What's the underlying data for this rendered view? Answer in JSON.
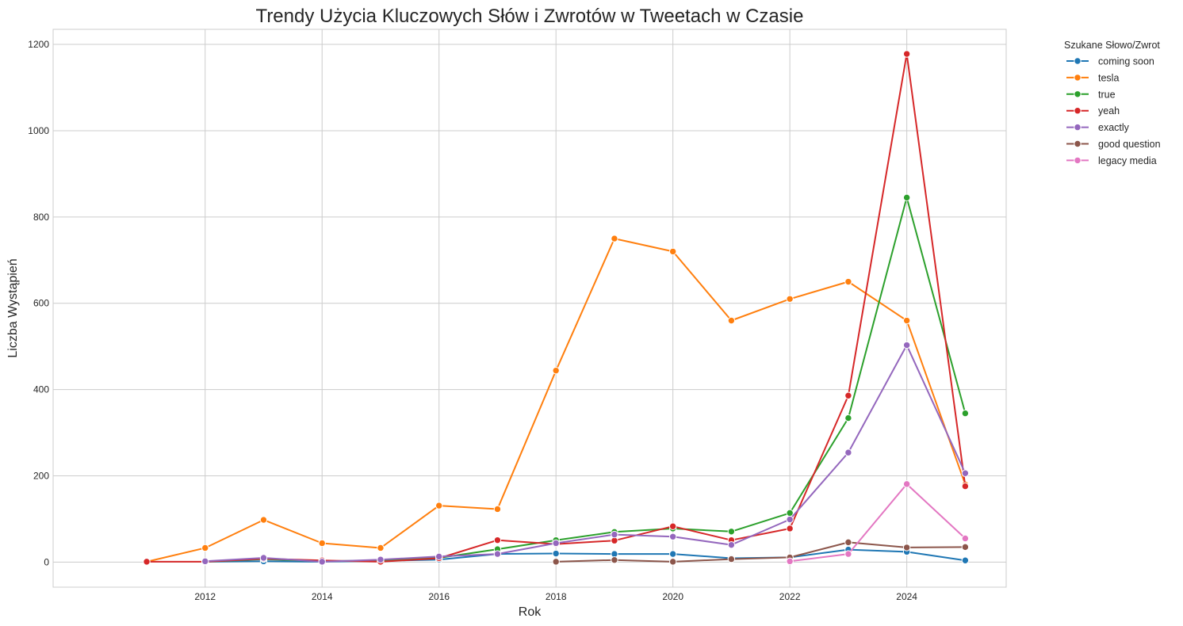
{
  "chart_data": {
    "type": "line",
    "title": "Trendy Użycia Kluczowych Słów i Zwrotów w Tweetach w Czasie",
    "xlabel": "Rok",
    "ylabel": "Liczba Wystąpień",
    "xlim": [
      2009.4,
      2025.7
    ],
    "ylim": [
      -58,
      1235
    ],
    "xticks": [
      2012,
      2014,
      2016,
      2018,
      2020,
      2022,
      2024
    ],
    "yticks": [
      0,
      200,
      400,
      600,
      800,
      1000,
      1200
    ],
    "grid": true,
    "legend": {
      "title": "Szukane Słowo/Zwrot",
      "position": "outside-right"
    },
    "series": [
      {
        "name": "coming soon",
        "color": "#1f77b4",
        "points": [
          [
            2012,
            1
          ],
          [
            2013,
            2
          ],
          [
            2014,
            1
          ],
          [
            2015,
            3
          ],
          [
            2016,
            6
          ],
          [
            2017,
            19
          ],
          [
            2018,
            20
          ],
          [
            2019,
            19
          ],
          [
            2020,
            19
          ],
          [
            2021,
            9
          ],
          [
            2022,
            11
          ],
          [
            2023,
            29
          ],
          [
            2024,
            24
          ],
          [
            2025,
            4
          ]
        ]
      },
      {
        "name": "tesla",
        "color": "#ff7f0e",
        "points": [
          [
            2011,
            1
          ],
          [
            2012,
            33
          ],
          [
            2013,
            98
          ],
          [
            2014,
            44
          ],
          [
            2015,
            33
          ],
          [
            2016,
            131
          ],
          [
            2017,
            123
          ],
          [
            2018,
            444
          ],
          [
            2019,
            750
          ],
          [
            2020,
            720
          ],
          [
            2021,
            560
          ],
          [
            2022,
            610
          ],
          [
            2023,
            650
          ],
          [
            2024,
            560
          ],
          [
            2025,
            180
          ]
        ]
      },
      {
        "name": "true",
        "color": "#2ca02c",
        "points": [
          [
            2012,
            1
          ],
          [
            2013,
            7
          ],
          [
            2014,
            2
          ],
          [
            2015,
            4
          ],
          [
            2016,
            10
          ],
          [
            2017,
            30
          ],
          [
            2018,
            51
          ],
          [
            2019,
            70
          ],
          [
            2020,
            78
          ],
          [
            2021,
            71
          ],
          [
            2022,
            114
          ],
          [
            2023,
            334
          ],
          [
            2024,
            845
          ],
          [
            2025,
            345
          ]
        ]
      },
      {
        "name": "yeah",
        "color": "#d62728",
        "points": [
          [
            2011,
            1
          ],
          [
            2012,
            1
          ],
          [
            2013,
            8
          ],
          [
            2014,
            4
          ],
          [
            2015,
            1
          ],
          [
            2016,
            9
          ],
          [
            2017,
            51
          ],
          [
            2018,
            42
          ],
          [
            2019,
            50
          ],
          [
            2020,
            83
          ],
          [
            2021,
            51
          ],
          [
            2022,
            78
          ],
          [
            2023,
            386
          ],
          [
            2024,
            1178
          ],
          [
            2025,
            176
          ]
        ]
      },
      {
        "name": "exactly",
        "color": "#9467bd",
        "points": [
          [
            2012,
            2
          ],
          [
            2013,
            10
          ],
          [
            2014,
            1
          ],
          [
            2015,
            6
          ],
          [
            2016,
            13
          ],
          [
            2017,
            19
          ],
          [
            2018,
            44
          ],
          [
            2019,
            64
          ],
          [
            2020,
            59
          ],
          [
            2021,
            40
          ],
          [
            2022,
            99
          ],
          [
            2023,
            254
          ],
          [
            2024,
            503
          ],
          [
            2025,
            206
          ]
        ]
      },
      {
        "name": "good question",
        "color": "#8c564b",
        "points": [
          [
            2018,
            1
          ],
          [
            2019,
            5
          ],
          [
            2020,
            1
          ],
          [
            2021,
            7
          ],
          [
            2022,
            11
          ],
          [
            2023,
            46
          ],
          [
            2024,
            34
          ],
          [
            2025,
            35
          ]
        ]
      },
      {
        "name": "legacy media",
        "color": "#e377c2",
        "points": [
          [
            2022,
            2
          ],
          [
            2023,
            19
          ],
          [
            2024,
            181
          ],
          [
            2025,
            55
          ]
        ]
      }
    ]
  }
}
